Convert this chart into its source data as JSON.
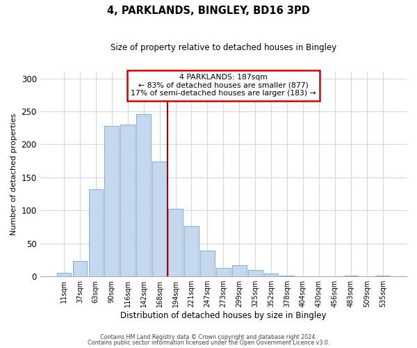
{
  "title": "4, PARKLANDS, BINGLEY, BD16 3PD",
  "subtitle": "Size of property relative to detached houses in Bingley",
  "xlabel": "Distribution of detached houses by size in Bingley",
  "ylabel": "Number of detached properties",
  "bar_labels": [
    "11sqm",
    "37sqm",
    "63sqm",
    "90sqm",
    "116sqm",
    "142sqm",
    "168sqm",
    "194sqm",
    "221sqm",
    "247sqm",
    "273sqm",
    "299sqm",
    "325sqm",
    "352sqm",
    "378sqm",
    "404sqm",
    "430sqm",
    "456sqm",
    "483sqm",
    "509sqm",
    "535sqm"
  ],
  "bar_values": [
    5,
    23,
    132,
    228,
    230,
    246,
    174,
    102,
    76,
    39,
    13,
    17,
    10,
    4,
    1,
    0,
    0,
    0,
    1,
    0,
    1
  ],
  "bar_color": "#c5d8ef",
  "bar_edge_color": "#7aafd4",
  "vline_x_index": 7,
  "vline_color": "#aa0000",
  "annotation_title": "4 PARKLANDS: 187sqm",
  "annotation_line1": "← 83% of detached houses are smaller (877)",
  "annotation_line2": "17% of semi-detached houses are larger (183) →",
  "annotation_box_color": "#ffffff",
  "annotation_box_edge": "#cc0000",
  "footer1": "Contains HM Land Registry data © Crown copyright and database right 2024.",
  "footer2": "Contains public sector information licensed under the Open Government Licence v3.0.",
  "ylim": [
    0,
    310
  ],
  "yticks": [
    0,
    50,
    100,
    150,
    200,
    250,
    300
  ],
  "fig_bg": "#ffffff",
  "axes_bg": "#ffffff",
  "grid_color": "#d0d8e4"
}
